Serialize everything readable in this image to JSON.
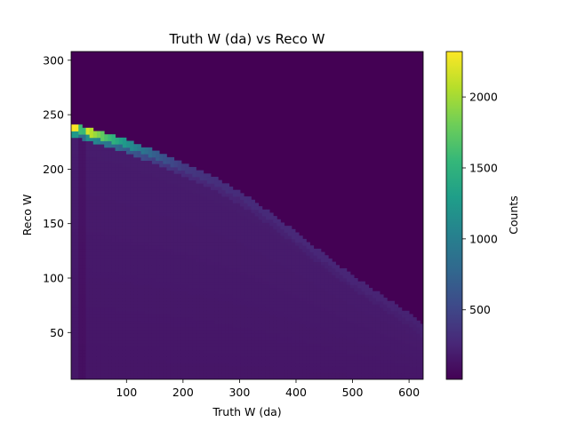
{
  "chart_data": {
    "type": "heatmap",
    "title": "Truth W (da) vs Reco W",
    "xlabel": "Truth W (da)",
    "ylabel": "Reco W",
    "xlim": [
      2,
      625
    ],
    "ylim": [
      7,
      308
    ],
    "xticks": [
      100,
      200,
      300,
      400,
      500,
      600
    ],
    "yticks": [
      50,
      100,
      150,
      200,
      250,
      300
    ],
    "colormap": "viridis",
    "colorbar": {
      "label": "Counts",
      "range": [
        10,
        2320
      ],
      "ticks": [
        500,
        1000,
        1500,
        2000
      ]
    },
    "features": {
      "ridge": [
        {
          "x": 5,
          "y": 240,
          "counts": 2320
        },
        {
          "x": 30,
          "y": 236,
          "counts": 2200
        },
        {
          "x": 60,
          "y": 232,
          "counts": 1700
        },
        {
          "x": 100,
          "y": 225,
          "counts": 1200
        },
        {
          "x": 150,
          "y": 215,
          "counts": 700
        },
        {
          "x": 200,
          "y": 204,
          "counts": 400
        },
        {
          "x": 250,
          "y": 192,
          "counts": 330
        },
        {
          "x": 300,
          "y": 178,
          "counts": 300
        },
        {
          "x": 350,
          "y": 160,
          "counts": 280
        },
        {
          "x": 400,
          "y": 140,
          "counts": 270
        },
        {
          "x": 450,
          "y": 120,
          "counts": 260
        },
        {
          "x": 500,
          "y": 100,
          "counts": 250
        },
        {
          "x": 550,
          "y": 83,
          "counts": 240
        },
        {
          "x": 600,
          "y": 66,
          "counts": 230
        },
        {
          "x": 625,
          "y": 55,
          "counts": 220
        }
      ],
      "fill_region_counts": 180,
      "background_counts": 10
    }
  },
  "colors": {
    "viridis": [
      "#440154",
      "#482878",
      "#3e4989",
      "#31688e",
      "#26828e",
      "#1f9e89",
      "#35b779",
      "#6ece58",
      "#b5de2b",
      "#fde725"
    ],
    "background": "#440154"
  }
}
